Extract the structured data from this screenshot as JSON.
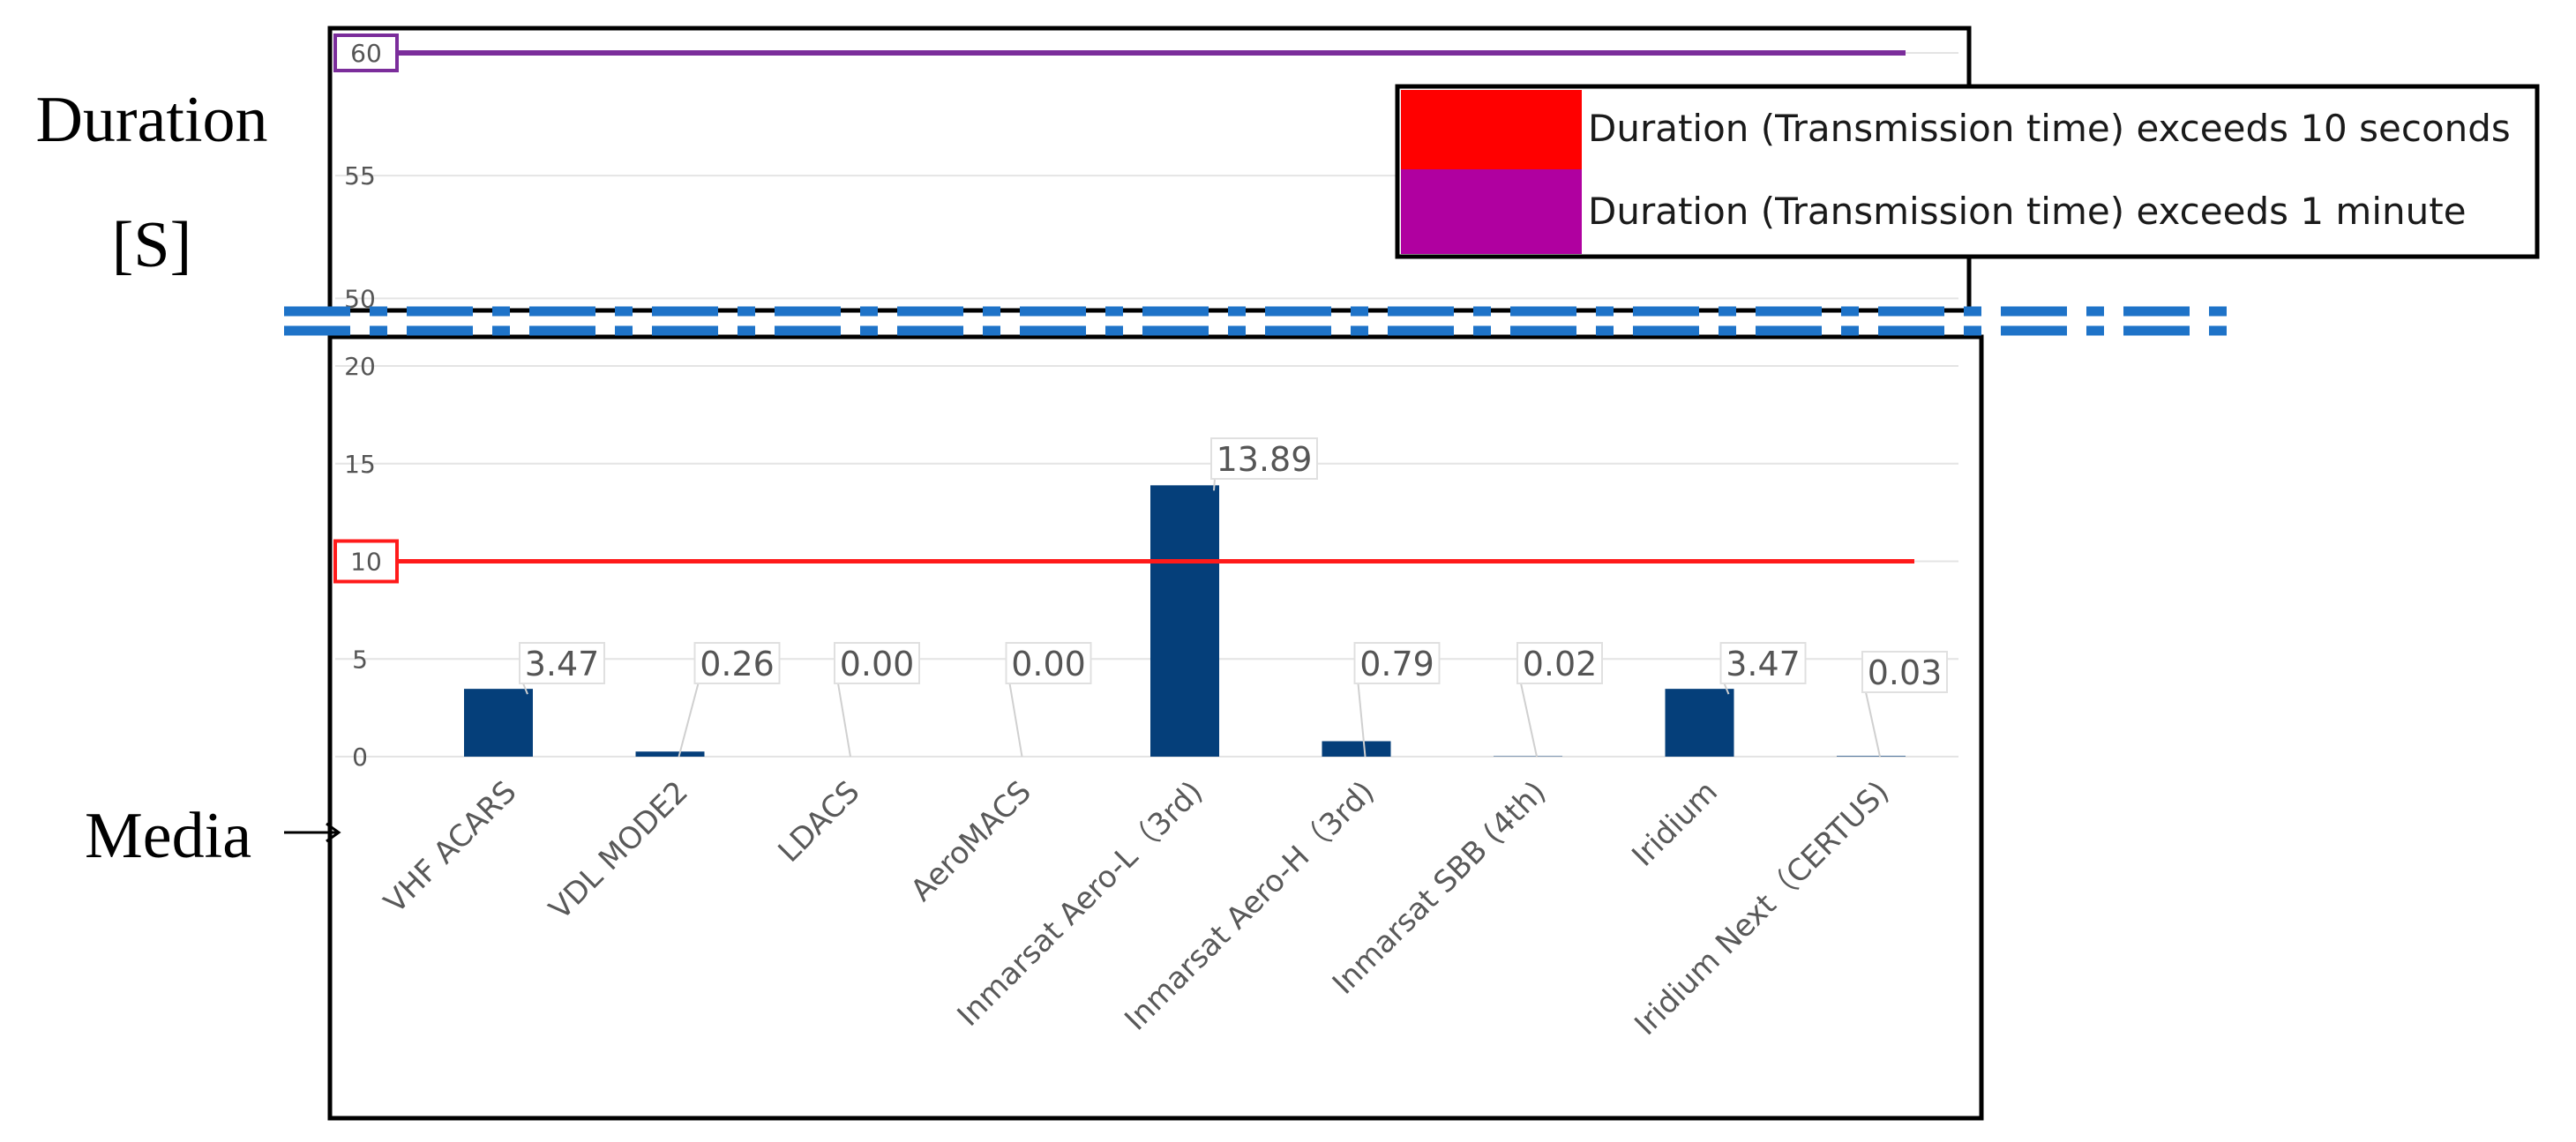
{
  "chart_data": {
    "type": "bar",
    "ylabel_line1": "Duration",
    "ylabel_line2": "[S]",
    "xlabel": "Media",
    "categories": [
      "VHF ACARS",
      "VDL MODE2",
      "LDACS",
      "AeroMACS",
      "Inmarsat Aero-L（3rd)",
      "Inmarsat Aero-H（3rd)",
      "Inmarsat SBB (4th)",
      "Iridium",
      "Iridium Next（CERTUS)"
    ],
    "values": [
      3.47,
      0.26,
      0.0,
      0.0,
      13.89,
      0.79,
      0.02,
      3.47,
      0.03
    ],
    "value_labels": [
      "3.47",
      "0.26",
      "0.00",
      "0.00",
      "13.89",
      "0.79",
      "0.02",
      "3.47",
      "0.03"
    ],
    "lower_axis": {
      "ylim": [
        0,
        20
      ],
      "ticks": [
        "0",
        "5",
        "10",
        "15",
        "20"
      ]
    },
    "upper_axis": {
      "ylim": [
        48,
        60
      ],
      "ticks": [
        "50",
        "55",
        "60"
      ]
    },
    "thresholds": [
      {
        "value": 10,
        "label": "10",
        "color": "#ff1a1a"
      },
      {
        "value": 60,
        "label": "60",
        "color": "#7b2d9b"
      }
    ],
    "legend": [
      {
        "label": "Duration (Transmission time) exceeds 10 seconds",
        "color": "#ff0000"
      },
      {
        "label": "Duration (Transmission time)  exceeds 1 minute",
        "color": "#b000a0"
      }
    ],
    "legend_position": "top-right",
    "bar_color": "#053f7a",
    "break_color": "#1e73c8",
    "grid": true
  }
}
